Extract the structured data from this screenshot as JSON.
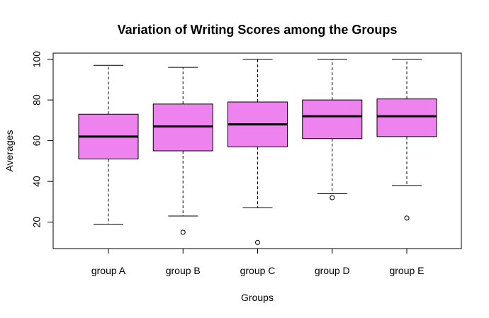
{
  "chart_data": {
    "type": "boxplot",
    "title": "Variation of Writing Scores among the Groups",
    "xlabel": "Groups",
    "ylabel": "Averages",
    "categories": [
      "group A",
      "group B",
      "group C",
      "group D",
      "group E"
    ],
    "yticks": [
      20,
      40,
      60,
      80,
      100
    ],
    "ytick_labels": [
      "20",
      "40",
      "60",
      "80",
      "100"
    ],
    "ylim": [
      7,
      103
    ],
    "box_color": "#EE82EE",
    "boxes": [
      {
        "label": "group A",
        "whisker_low": 19,
        "q1": 51,
        "median": 62,
        "q3": 73,
        "whisker_high": 97,
        "outliers": []
      },
      {
        "label": "group B",
        "whisker_low": 23,
        "q1": 55,
        "median": 67,
        "q3": 78,
        "whisker_high": 96,
        "outliers": [
          15
        ]
      },
      {
        "label": "group C",
        "whisker_low": 27,
        "q1": 57,
        "median": 68,
        "q3": 79,
        "whisker_high": 100,
        "outliers": [
          10
        ]
      },
      {
        "label": "group D",
        "whisker_low": 34,
        "q1": 61,
        "median": 72,
        "q3": 80,
        "whisker_high": 100,
        "outliers": [
          32
        ]
      },
      {
        "label": "group E",
        "whisker_low": 38,
        "q1": 62,
        "median": 72,
        "q3": 80.5,
        "whisker_high": 100,
        "outliers": [
          22
        ]
      }
    ]
  }
}
